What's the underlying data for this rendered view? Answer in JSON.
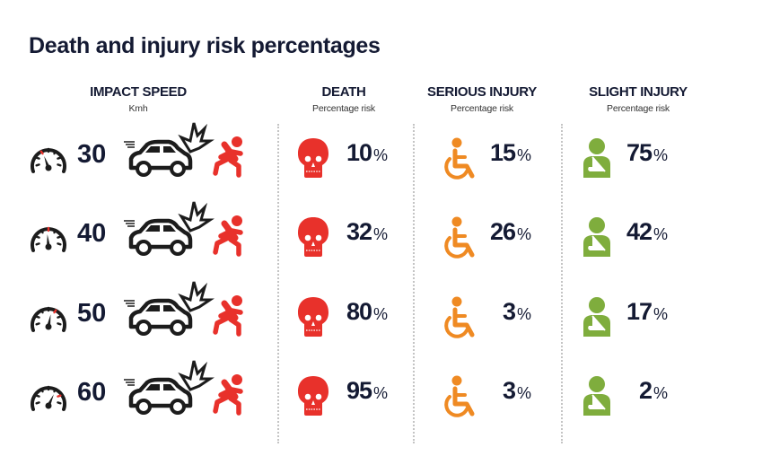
{
  "title": "Death and injury risk percentages",
  "headers": {
    "speed": {
      "label": "IMPACT SPEED",
      "sub": "Kmh"
    },
    "death": {
      "label": "DEATH",
      "sub": "Percentage risk"
    },
    "serious": {
      "label": "SERIOUS INJURY",
      "sub": "Percentage risk"
    },
    "slight": {
      "label": "SLIGHT INJURY",
      "sub": "Percentage risk"
    }
  },
  "colors": {
    "text": "#141a33",
    "death": "#e8312b",
    "serious": "#ef8a23",
    "slight": "#7fad3d",
    "icon_dark": "#1c1c1c",
    "divider": "#c4c4c4"
  },
  "icons": {
    "speed": "speedometer-icon",
    "impact": "car-crash-icon",
    "pedestrian": "falling-pedestrian-icon",
    "death": "skull-icon",
    "serious": "wheelchair-icon",
    "slight": "arm-sling-icon"
  },
  "percent_sign": "%",
  "rows": [
    {
      "speed": "30",
      "death": "10",
      "serious": "15",
      "slight": "75"
    },
    {
      "speed": "40",
      "death": "32",
      "serious": "26",
      "slight": "42"
    },
    {
      "speed": "50",
      "death": "80",
      "serious": "3",
      "slight": "17"
    },
    {
      "speed": "60",
      "death": "95",
      "serious": "3",
      "slight": "2"
    }
  ],
  "chart_data": {
    "type": "table",
    "title": "Death and injury risk percentages",
    "columns": [
      "Impact speed (Kmh)",
      "Death (%)",
      "Serious injury (%)",
      "Slight injury (%)"
    ],
    "categories": [
      "30",
      "40",
      "50",
      "60"
    ],
    "series": [
      {
        "name": "Death",
        "values": [
          10,
          32,
          80,
          95
        ]
      },
      {
        "name": "Serious injury",
        "values": [
          15,
          26,
          3,
          3
        ]
      },
      {
        "name": "Slight injury",
        "values": [
          75,
          42,
          17,
          2
        ]
      }
    ],
    "xlabel": "Impact speed (Kmh)",
    "ylabel": "Percentage risk"
  }
}
